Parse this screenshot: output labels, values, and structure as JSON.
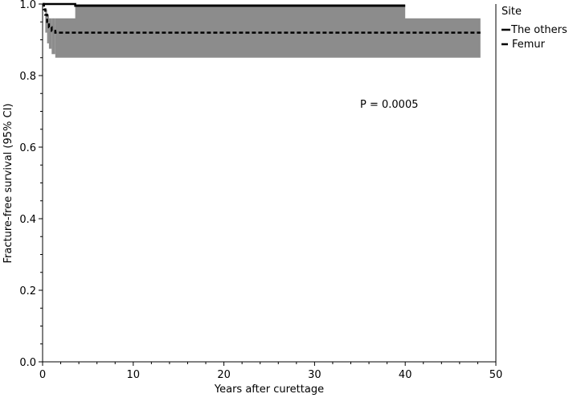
{
  "chart_data": {
    "type": "line",
    "title": "",
    "xlabel": "Years after curettage",
    "ylabel": "Fracture-free survival (95% CI)",
    "xlim": [
      0,
      50
    ],
    "ylim": [
      0,
      1.0
    ],
    "x_ticks": [
      0,
      10,
      20,
      30,
      40,
      50
    ],
    "x_tick_labels": [
      "0",
      "10",
      "20",
      "30",
      "40",
      "50"
    ],
    "y_ticks": [
      0.0,
      0.2,
      0.4,
      0.6,
      0.8,
      1.0
    ],
    "y_tick_labels": [
      "0.0",
      "0.2",
      "0.4",
      "0.6",
      "0.8",
      "1.0"
    ],
    "grid": false,
    "legend_title": "Site",
    "legend_position": "right",
    "annotation": "P = 0.0005",
    "series": [
      {
        "name": "The others",
        "line_style": "solid",
        "color": "#000000",
        "steps": [
          [
            0,
            1.0
          ],
          [
            3.6,
            0.995
          ],
          [
            40.0,
            0.995
          ]
        ],
        "ci_band": [
          [
            3.6,
            0.955,
            1.0
          ],
          [
            40.0,
            0.955,
            1.0
          ]
        ]
      },
      {
        "name": "Femur",
        "line_style": "dashed",
        "color": "#000000",
        "steps": [
          [
            0,
            1.0
          ],
          [
            0.15,
            0.985
          ],
          [
            0.3,
            0.97
          ],
          [
            0.5,
            0.95
          ],
          [
            0.7,
            0.935
          ],
          [
            1.0,
            0.925
          ],
          [
            1.4,
            0.92
          ],
          [
            48.3,
            0.92
          ]
        ],
        "ci_band": [
          [
            0.3,
            0.92,
            0.985
          ],
          [
            0.5,
            0.89,
            0.97
          ],
          [
            0.7,
            0.875,
            0.96
          ],
          [
            1.0,
            0.86,
            0.96
          ],
          [
            1.4,
            0.85,
            0.96
          ],
          [
            48.3,
            0.85,
            0.96
          ]
        ]
      }
    ],
    "ci_color": "#8c8c8c"
  }
}
